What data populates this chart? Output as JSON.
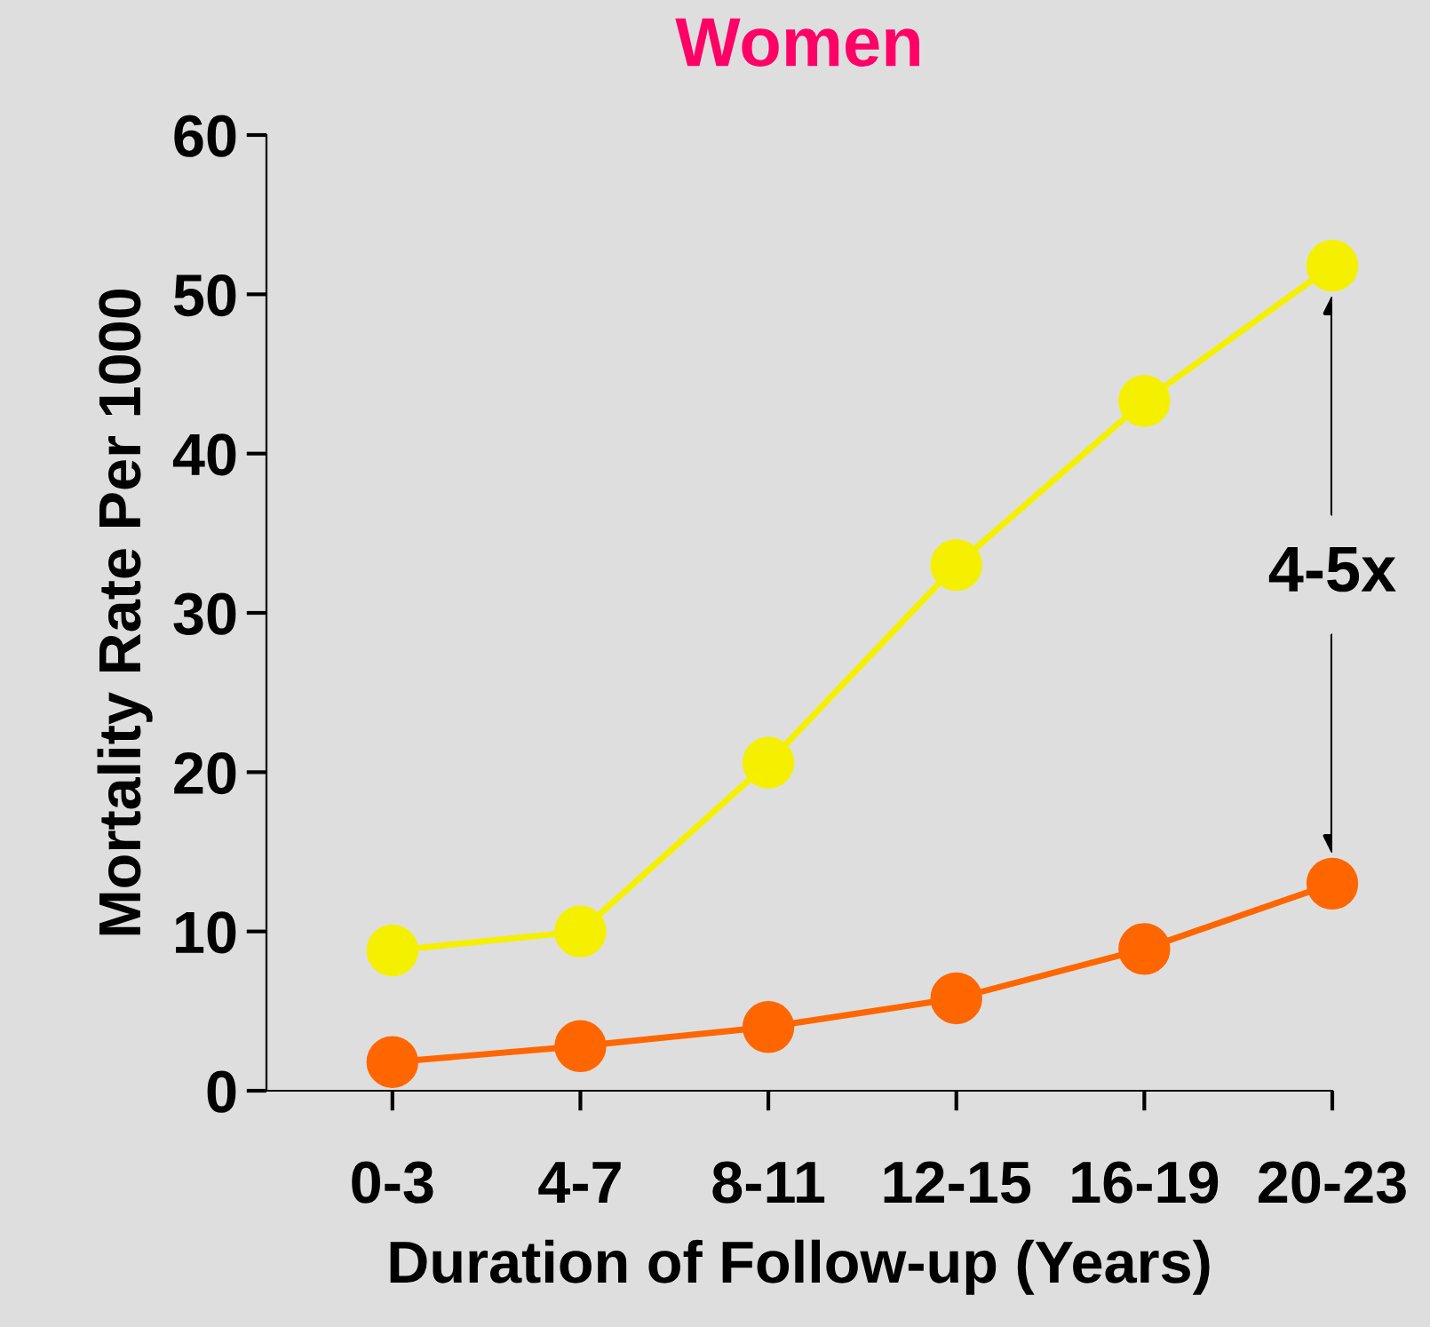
{
  "chart_data": {
    "type": "line",
    "title": "Women",
    "xlabel": "Duration of Follow-up (Years)",
    "ylabel": "Mortality Rate Per 1000",
    "categories": [
      "0-3",
      "4-7",
      "8-11",
      "12-15",
      "16-19",
      "20-23"
    ],
    "series": [
      {
        "color": "#f5f000",
        "values": [
          8.8,
          10.0,
          20.6,
          33.0,
          43.3,
          51.8
        ]
      },
      {
        "color": "#ff6600",
        "values": [
          1.8,
          2.8,
          4.0,
          5.8,
          8.9,
          13.0
        ]
      }
    ],
    "ylim": [
      0,
      60
    ],
    "yticks": [
      0,
      10,
      20,
      30,
      40,
      50,
      60
    ],
    "marker": "circle",
    "line_style": "solid",
    "grid": false,
    "legend": false,
    "annotations": [
      "4-5x"
    ]
  }
}
